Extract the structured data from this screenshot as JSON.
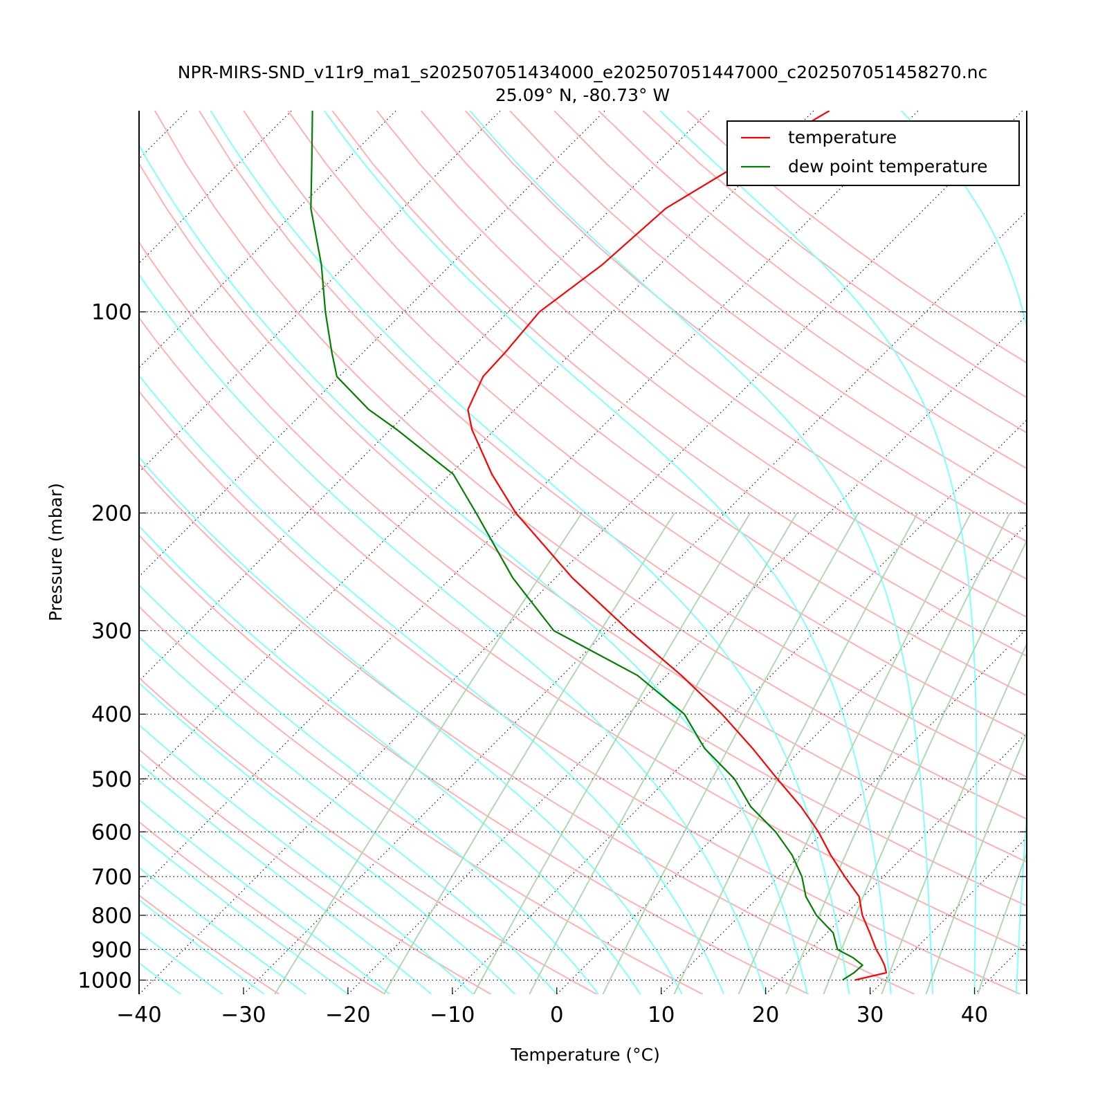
{
  "chart_data": {
    "type": "line",
    "subtype": "skew-T log-P diagram",
    "title": "NPR-MIRS-SND_v11r9_ma1_s202507051434000_e202507051447000_c202507051458270.nc",
    "subtitle": "25.09° N, -80.73° W",
    "xlabel": "Temperature (°C)",
    "ylabel": "Pressure (mbar)",
    "x_scale": "linear, skewed",
    "y_scale": "log, inverted",
    "xlim": [
      -40,
      45
    ],
    "ylim": [
      1050,
      50
    ],
    "x_ticks": [
      -40,
      -30,
      -20,
      -10,
      0,
      10,
      20,
      30,
      40
    ],
    "x_tick_labels": [
      "−40",
      "−30",
      "−20",
      "−10",
      "0",
      "10",
      "20",
      "30",
      "40"
    ],
    "y_ticks": [
      100,
      200,
      300,
      400,
      500,
      600,
      700,
      800,
      900,
      1000
    ],
    "y_tick_labels": [
      "100",
      "200",
      "300",
      "400",
      "500",
      "600",
      "700",
      "800",
      "900",
      "1000"
    ],
    "grid": "horizontal isobars (dotted)",
    "legend_position": "top-right",
    "colors": {
      "temperature": "#ff0000",
      "dewpoint": "#007f00",
      "dry_adiabats": "#ffb0b0",
      "moist_adiabats": "#80ffff",
      "mixing_ratio_lines": "#b0d8b0",
      "isotherms": "#000000"
    },
    "series": [
      {
        "name": "temperature",
        "pressure": [
          1000,
          975,
          950,
          925,
          900,
          850,
          800,
          750,
          700,
          650,
          600,
          550,
          500,
          450,
          400,
          350,
          300,
          250,
          200,
          175,
          150,
          140,
          125,
          115,
          100,
          85,
          70,
          60,
          50
        ],
        "values": [
          27.2,
          29.5,
          28.6,
          27.5,
          26.3,
          24.1,
          21.7,
          19.6,
          16.3,
          12.9,
          9.5,
          5.4,
          0.5,
          -4.8,
          -11.0,
          -18.6,
          -27.9,
          -38.4,
          -50.0,
          -56.0,
          -62.2,
          -64.5,
          -66.2,
          -66.4,
          -67.0,
          -65.5,
          -64.8,
          -62.0,
          -58.5
        ]
      },
      {
        "name": "dew point temperature",
        "pressure": [
          1000,
          975,
          950,
          925,
          900,
          850,
          800,
          750,
          700,
          650,
          600,
          550,
          500,
          450,
          400,
          350,
          300,
          250,
          200,
          175,
          150,
          140,
          125,
          115,
          100,
          85,
          70,
          60,
          50
        ],
        "values": [
          26.0,
          26.4,
          26.5,
          24.8,
          22.6,
          20.6,
          17.3,
          14.5,
          12.2,
          9.2,
          5.4,
          0.6,
          -3.6,
          -9.4,
          -14.6,
          -22.8,
          -35.1,
          -44.1,
          -53.8,
          -59.7,
          -69.4,
          -74.0,
          -80.2,
          -83.0,
          -87.5,
          -92.4,
          -98.8,
          -103.0,
          -108.0
        ]
      }
    ]
  }
}
